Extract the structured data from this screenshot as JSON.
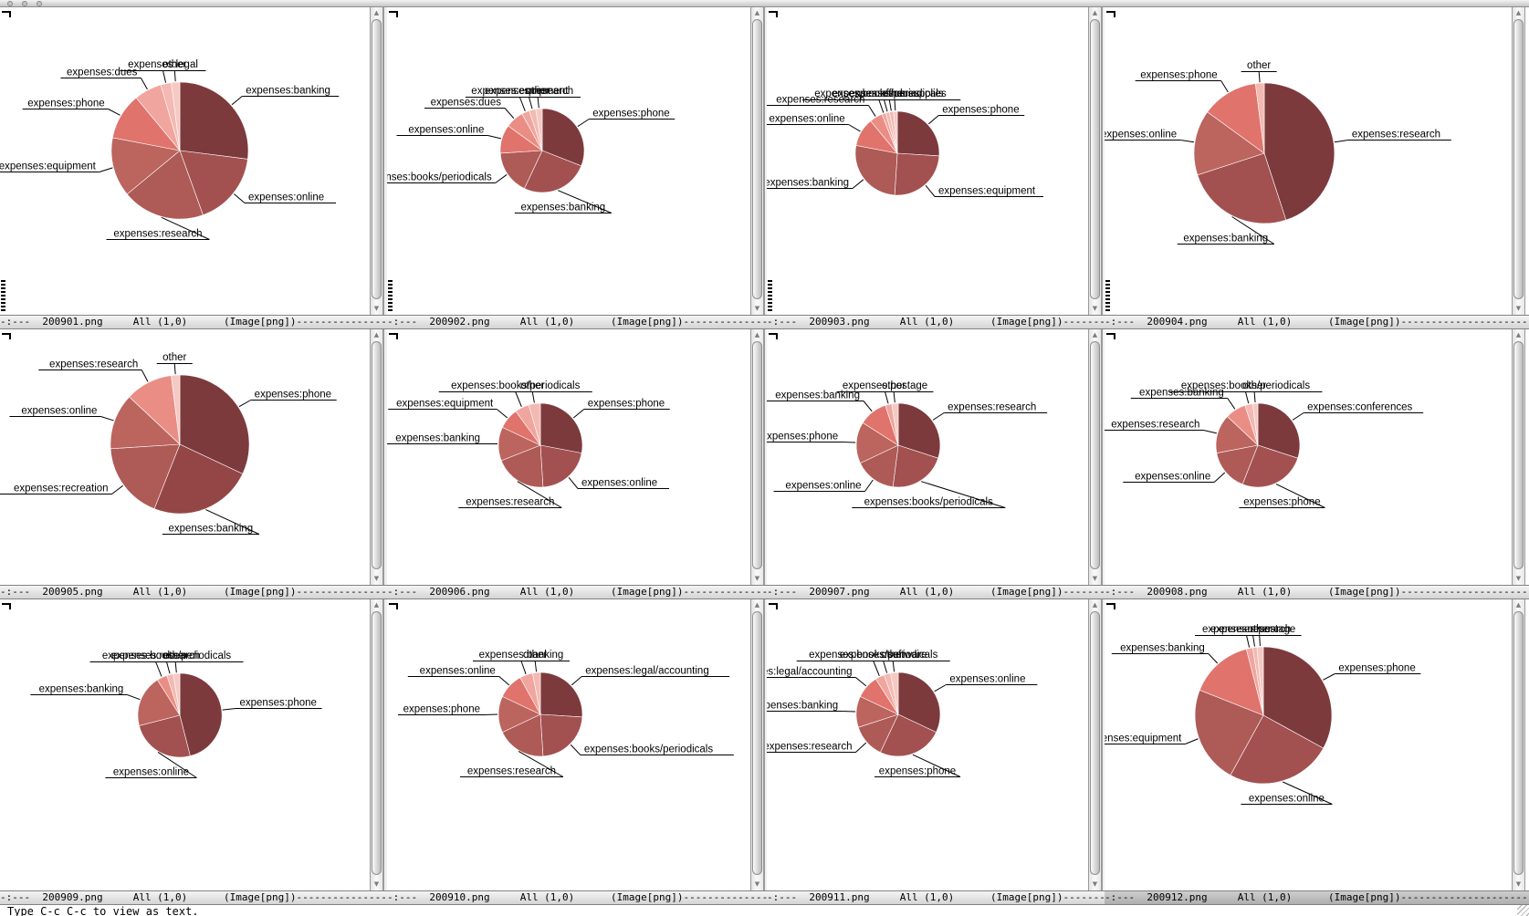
{
  "echo_area": "Type C-c C-c to view as text.",
  "modeline_format": {
    "prefix": "-:---",
    "position": "All (1,0)",
    "mode": "(Image[png])"
  },
  "active_window": "200912.png",
  "titlebar": {
    "buttons": [
      "close",
      "minimize",
      "zoom"
    ]
  },
  "palette": [
    "#7C3A3D",
    "#934645",
    "#A25150",
    "#AE5A57",
    "#BC645E",
    "#E0736B",
    "#EA8E85",
    "#F0A69E",
    "#F3B9B2",
    "#F6C9C3"
  ],
  "chart_data": [
    {
      "file": "200901.png",
      "type": "pie",
      "unit": "percent-of-expenses",
      "slices": [
        {
          "label": "expenses:banking",
          "value": 27,
          "color": 0
        },
        {
          "label": "expenses:online",
          "value": 17.5,
          "color": 2
        },
        {
          "label": "expenses:research",
          "value": 19.5,
          "color": 3
        },
        {
          "label": "expenses:equipment",
          "value": 14,
          "color": 4
        },
        {
          "label": "expenses:phone",
          "value": 11,
          "color": 5
        },
        {
          "label": "expenses:dues",
          "value": 6.5,
          "color": 7
        },
        {
          "label": "expenses:legal",
          "value": 2.5,
          "color": 8
        },
        {
          "label": "other",
          "value": 2,
          "color": 9
        }
      ]
    },
    {
      "file": "200902.png",
      "type": "pie",
      "unit": "percent-of-expenses",
      "slices": [
        {
          "label": "expenses:phone",
          "value": 31,
          "color": 0
        },
        {
          "label": "expenses:banking",
          "value": 26,
          "color": 2
        },
        {
          "label": "expenses:books/periodicals",
          "value": 17,
          "color": 3
        },
        {
          "label": "expenses:online",
          "value": 11,
          "color": 5
        },
        {
          "label": "expenses:dues",
          "value": 7,
          "color": 6
        },
        {
          "label": "expenses:equipment",
          "value": 3,
          "color": 7
        },
        {
          "label": "expenses:research",
          "value": 2.5,
          "color": 8
        },
        {
          "label": "other",
          "value": 2.5,
          "color": 9
        }
      ]
    },
    {
      "file": "200903.png",
      "type": "pie",
      "unit": "percent-of-expenses",
      "slices": [
        {
          "label": "expenses:phone",
          "value": 26,
          "color": 0
        },
        {
          "label": "expenses:equipment",
          "value": 25,
          "color": 2
        },
        {
          "label": "expenses:banking",
          "value": 27,
          "color": 3
        },
        {
          "label": "expenses:online",
          "value": 11,
          "color": 5
        },
        {
          "label": "expenses:research",
          "value": 5,
          "color": 6
        },
        {
          "label": "expenses:books/periodicals",
          "value": 1.5,
          "color": 7
        },
        {
          "label": "expenses:dues",
          "value": 1.5,
          "color": 8
        },
        {
          "label": "expenses:office supplies",
          "value": 1.5,
          "color": 8
        },
        {
          "label": "other",
          "value": 1.5,
          "color": 9
        }
      ]
    },
    {
      "file": "200904.png",
      "type": "pie",
      "unit": "percent-of-expenses",
      "slices": [
        {
          "label": "expenses:research",
          "value": 45,
          "color": 0
        },
        {
          "label": "expenses:banking",
          "value": 25,
          "color": 2
        },
        {
          "label": "expenses:online",
          "value": 15,
          "color": 4
        },
        {
          "label": "expenses:phone",
          "value": 13,
          "color": 5
        },
        {
          "label": "other",
          "value": 2,
          "color": 8
        }
      ]
    },
    {
      "file": "200905.png",
      "type": "pie",
      "unit": "percent-of-expenses",
      "slices": [
        {
          "label": "expenses:phone",
          "value": 32,
          "color": 0
        },
        {
          "label": "expenses:banking",
          "value": 24,
          "color": 1
        },
        {
          "label": "expenses:recreation",
          "value": 18,
          "color": 3
        },
        {
          "label": "expenses:online",
          "value": 13,
          "color": 4
        },
        {
          "label": "expenses:research",
          "value": 11,
          "color": 6
        },
        {
          "label": "other",
          "value": 2,
          "color": 9
        }
      ]
    },
    {
      "file": "200906.png",
      "type": "pie",
      "unit": "percent-of-expenses",
      "slices": [
        {
          "label": "expenses:phone",
          "value": 28,
          "color": 0
        },
        {
          "label": "expenses:online",
          "value": 21,
          "color": 2
        },
        {
          "label": "expenses:research",
          "value": 20,
          "color": 3
        },
        {
          "label": "expenses:banking",
          "value": 13,
          "color": 4
        },
        {
          "label": "expenses:equipment",
          "value": 8,
          "color": 5
        },
        {
          "label": "expenses:books/periodicals",
          "value": 5.5,
          "color": 7
        },
        {
          "label": "other",
          "value": 4.5,
          "color": 8
        }
      ]
    },
    {
      "file": "200907.png",
      "type": "pie",
      "unit": "percent-of-expenses",
      "slices": [
        {
          "label": "expenses:research",
          "value": 30,
          "color": 0
        },
        {
          "label": "expenses:books/periodicals",
          "value": 22,
          "color": 2
        },
        {
          "label": "expenses:online",
          "value": 16,
          "color": 3
        },
        {
          "label": "expenses:phone",
          "value": 16,
          "color": 4
        },
        {
          "label": "expenses:banking",
          "value": 11,
          "color": 5
        },
        {
          "label": "expenses:postage",
          "value": 2.5,
          "color": 7
        },
        {
          "label": "other",
          "value": 2.5,
          "color": 9
        }
      ]
    },
    {
      "file": "200908.png",
      "type": "pie",
      "unit": "percent-of-expenses",
      "slices": [
        {
          "label": "expenses:conferences",
          "value": 30,
          "color": 0
        },
        {
          "label": "expenses:phone",
          "value": 26,
          "color": 2
        },
        {
          "label": "expenses:online",
          "value": 16,
          "color": 3
        },
        {
          "label": "expenses:research",
          "value": 15,
          "color": 4
        },
        {
          "label": "expenses:banking",
          "value": 8,
          "color": 6
        },
        {
          "label": "expenses:books/periodicals",
          "value": 3,
          "color": 8
        },
        {
          "label": "other",
          "value": 2,
          "color": 9
        }
      ]
    },
    {
      "file": "200909.png",
      "type": "pie",
      "unit": "percent-of-expenses",
      "slices": [
        {
          "label": "expenses:phone",
          "value": 46,
          "color": 0
        },
        {
          "label": "expenses:online",
          "value": 25,
          "color": 2
        },
        {
          "label": "expenses:banking",
          "value": 20,
          "color": 4
        },
        {
          "label": "expenses:research",
          "value": 4,
          "color": 6
        },
        {
          "label": "expenses:books/periodicals",
          "value": 2.5,
          "color": 8
        },
        {
          "label": "other",
          "value": 2.5,
          "color": 9
        }
      ]
    },
    {
      "file": "200910.png",
      "type": "pie",
      "unit": "percent-of-expenses",
      "slices": [
        {
          "label": "expenses:legal/accounting",
          "value": 26,
          "color": 0
        },
        {
          "label": "expenses:books/periodicals",
          "value": 23,
          "color": 2
        },
        {
          "label": "expenses:research",
          "value": 19,
          "color": 3
        },
        {
          "label": "expenses:phone",
          "value": 14,
          "color": 4
        },
        {
          "label": "expenses:online",
          "value": 10,
          "color": 5
        },
        {
          "label": "expenses:banking",
          "value": 5,
          "color": 7
        },
        {
          "label": "other",
          "value": 3,
          "color": 8
        }
      ]
    },
    {
      "file": "200911.png",
      "type": "pie",
      "unit": "percent-of-expenses",
      "slices": [
        {
          "label": "expenses:online",
          "value": 32,
          "color": 0
        },
        {
          "label": "expenses:phone",
          "value": 25,
          "color": 2
        },
        {
          "label": "expenses:research",
          "value": 13,
          "color": 3
        },
        {
          "label": "expenses:banking",
          "value": 12,
          "color": 4
        },
        {
          "label": "expenses:legal/accounting",
          "value": 9,
          "color": 5
        },
        {
          "label": "expenses:books/periodicals",
          "value": 3.5,
          "color": 7
        },
        {
          "label": "expenses:software",
          "value": 2.5,
          "color": 8
        },
        {
          "label": "other",
          "value": 3,
          "color": 9
        }
      ]
    },
    {
      "file": "200912.png",
      "type": "pie",
      "unit": "percent-of-expenses",
      "slices": [
        {
          "label": "expenses:phone",
          "value": 33,
          "color": 0
        },
        {
          "label": "expenses:online",
          "value": 25,
          "color": 2
        },
        {
          "label": "expenses:equipment",
          "value": 23,
          "color": 3
        },
        {
          "label": "expenses:banking",
          "value": 15,
          "color": 5
        },
        {
          "label": "expenses:research",
          "value": 1.5,
          "color": 7
        },
        {
          "label": "expenses:postage",
          "value": 1,
          "color": 8
        },
        {
          "label": "other",
          "value": 1.5,
          "color": 9
        }
      ]
    }
  ]
}
